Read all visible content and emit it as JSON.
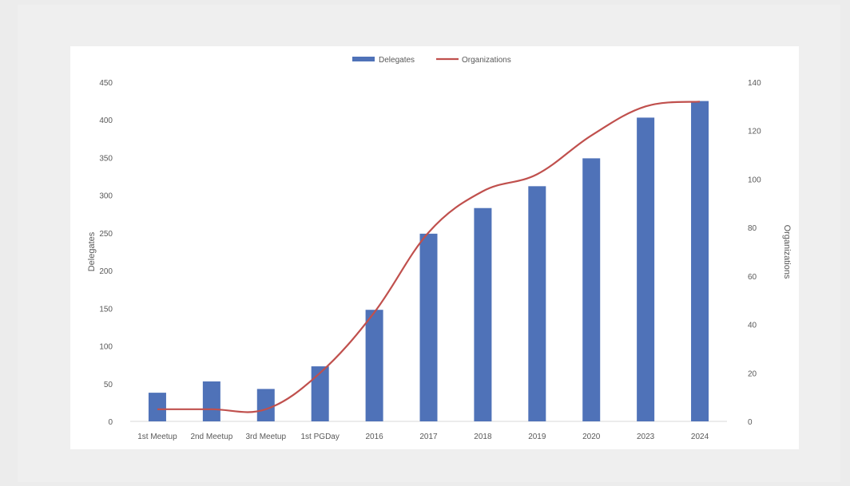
{
  "chart_data": {
    "type": "bar",
    "categories": [
      "1st Meetup",
      "2nd Meetup",
      "3rd Meetup",
      "1st PGDay",
      "2016",
      "2017",
      "2018",
      "2019",
      "2020",
      "2023",
      "2024"
    ],
    "series": [
      {
        "name": "Delegates",
        "type": "bar",
        "axis": "left",
        "color": "#4f72b8",
        "values": [
          38,
          53,
          43,
          73,
          148,
          249,
          283,
          312,
          349,
          403,
          425
        ]
      },
      {
        "name": "Organizations",
        "type": "line",
        "axis": "right",
        "color": "#c0504d",
        "values": [
          5,
          5,
          5,
          20,
          45,
          78,
          95,
          102,
          118,
          130,
          132
        ]
      }
    ],
    "ylabel": "Delegates",
    "ylabel_right": "Organizations",
    "ylim": [
      0,
      450
    ],
    "ylim_right": [
      0,
      140
    ],
    "yticks": [
      0,
      50,
      100,
      150,
      200,
      250,
      300,
      350,
      400,
      450
    ],
    "yticks_right": [
      0,
      20,
      40,
      60,
      80,
      100,
      120,
      140
    ],
    "legend": {
      "position": "top-center",
      "entries": [
        "Delegates",
        "Organizations"
      ]
    },
    "grid": false
  }
}
